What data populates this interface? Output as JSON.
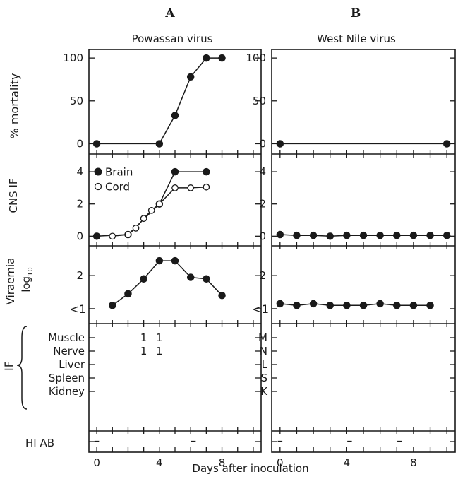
{
  "figure": {
    "x_axis_label": "Days after inoculation",
    "x_ticks": [
      0,
      4,
      8
    ],
    "x_range": [
      -0.5,
      10.5
    ],
    "left_row_labels": {
      "mortality": "% mortality",
      "cns": "CNS IF",
      "viraemia": "Viraemia",
      "viraemia_unit": "log",
      "viraemia_unit_sub": "10",
      "if": "IF",
      "hi": "HI AB"
    },
    "less_than_one_label": "<1",
    "if_tissues_left": [
      "Muscle",
      "Nerve",
      "Liver",
      "Spleen",
      "Kidney"
    ],
    "if_tissues_right": [
      "M",
      "N",
      "L",
      "S",
      "K"
    ],
    "panels": [
      {
        "letter": "A",
        "title": "Powassan virus",
        "legend": [
          {
            "label": "Brain",
            "marker": "filled"
          },
          {
            "label": "Cord",
            "marker": "open"
          }
        ]
      },
      {
        "letter": "B",
        "title": "West Nile virus",
        "legend": []
      }
    ]
  },
  "chart_data": [
    {
      "type": "line",
      "panel": "A",
      "row": "mortality",
      "ylabel": "% mortality",
      "yticks": [
        0,
        50,
        100
      ],
      "series": [
        {
          "marker": "filled",
          "x": [
            0,
            4,
            5,
            6,
            7,
            8
          ],
          "y": [
            0,
            0,
            33,
            78,
            100,
            100
          ]
        }
      ]
    },
    {
      "type": "line",
      "panel": "B",
      "row": "mortality",
      "yticks": [
        0,
        50,
        100
      ],
      "series": [
        {
          "marker": "filled",
          "x": [
            0,
            10
          ],
          "y": [
            0,
            0
          ]
        }
      ]
    },
    {
      "type": "line",
      "panel": "A",
      "row": "cns",
      "ylabel": "CNS IF",
      "yticks": [
        0,
        2,
        4
      ],
      "series": [
        {
          "name": "Brain",
          "marker": "filled",
          "x": [
            0,
            2,
            4,
            5,
            7
          ],
          "y": [
            0,
            0.1,
            2,
            4,
            4
          ]
        },
        {
          "name": "Cord",
          "marker": "open",
          "x": [
            1,
            2,
            2.5,
            3,
            3.5,
            4,
            5,
            6,
            7
          ],
          "y": [
            0,
            0.1,
            0.5,
            1.1,
            1.6,
            2,
            3,
            3,
            3.05
          ]
        }
      ]
    },
    {
      "type": "line",
      "panel": "B",
      "row": "cns",
      "yticks": [
        0,
        2,
        4
      ],
      "series": [
        {
          "marker": "filled",
          "x": [
            0,
            1,
            2,
            3,
            4,
            5,
            6,
            7,
            8,
            9,
            10
          ],
          "y": [
            0.1,
            0.05,
            0.05,
            0,
            0.05,
            0.05,
            0.05,
            0.05,
            0.05,
            0.05,
            0.05
          ]
        }
      ]
    },
    {
      "type": "line",
      "panel": "A",
      "row": "viraemia",
      "ylabel": "Viraemia log10",
      "yticks": [
        1,
        2
      ],
      "series": [
        {
          "marker": "filled",
          "x": [
            1,
            2,
            3,
            4,
            5,
            6,
            7,
            8
          ],
          "y": [
            1.1,
            1.45,
            1.9,
            2.45,
            2.45,
            1.95,
            1.9,
            1.4
          ]
        }
      ]
    },
    {
      "type": "line",
      "panel": "B",
      "row": "viraemia",
      "yticks": [
        1,
        2
      ],
      "series": [
        {
          "marker": "filled",
          "x": [
            0,
            1,
            2,
            3,
            4,
            5,
            6,
            7,
            8,
            9
          ],
          "y": [
            1.15,
            1.1,
            1.15,
            1.1,
            1.1,
            1.1,
            1.15,
            1.1,
            1.1,
            1.1
          ]
        }
      ]
    },
    {
      "type": "table",
      "panel": "A",
      "row": "if",
      "cells": [
        {
          "tissue": "Muscle",
          "day": 3,
          "text": "1"
        },
        {
          "tissue": "Muscle",
          "day": 4,
          "text": "1"
        },
        {
          "tissue": "Nerve",
          "day": 3,
          "text": "1"
        },
        {
          "tissue": "Nerve",
          "day": 4,
          "text": "1"
        }
      ]
    },
    {
      "type": "table",
      "panel": "A",
      "row": "hi",
      "cells": [
        {
          "day": 0,
          "text": "–"
        },
        {
          "day": 6,
          "text": "–"
        }
      ]
    },
    {
      "type": "table",
      "panel": "B",
      "row": "hi",
      "cells": [
        {
          "day": 0,
          "text": "–"
        },
        {
          "day": 4,
          "text": "–"
        },
        {
          "day": 7,
          "text": "–"
        }
      ]
    }
  ]
}
